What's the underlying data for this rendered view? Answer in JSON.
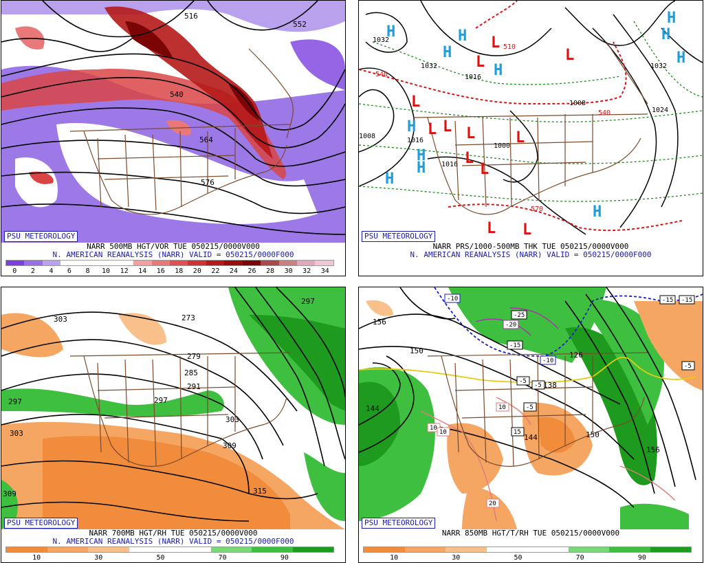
{
  "panels": {
    "vor500": {
      "badge": "PSU METEOROLOGY",
      "line1": "NARR 500MB HGT/VOR TUE 050215/0000V000",
      "line2": "N. AMERICAN REANALYSIS (NARR) VALID = 050215/0000F000",
      "scale_colors": [
        "#7b3fe0",
        "#9a6ee6",
        "#b9a3ee",
        "#ffffff",
        "#ffffff",
        "#ffffff",
        "#ffffff",
        "#f2a0a0",
        "#e97878",
        "#e05050",
        "#cf3232",
        "#b51a1a",
        "#9a0d0d",
        "#7b0505",
        "#a84a4a",
        "#c88080",
        "#e0a8b8",
        "#f4c6d4"
      ],
      "scale_labels": [
        "0",
        "2",
        "4",
        "6",
        "8",
        "10",
        "12",
        "14",
        "16",
        "18",
        "20",
        "22",
        "24",
        "26",
        "28",
        "30",
        "32",
        "34"
      ],
      "contour_labels": [
        "516",
        "552",
        "540",
        "564",
        "576"
      ]
    },
    "mslp": {
      "badge": "PSU METEOROLOGY",
      "line1": "NARR PRS/1000-500MB THK TUE 050215/0000V000",
      "line2": "N. AMERICAN REANALYSIS (NARR) VALID = 050215/0000F000",
      "highs": [
        "H",
        "H",
        "H",
        "H",
        "H",
        "H",
        "H",
        "H",
        "H",
        "H",
        "H",
        "H"
      ],
      "lows": [
        "L",
        "L",
        "L",
        "L",
        "L",
        "L",
        "L",
        "L",
        "L",
        "L",
        "L",
        "L"
      ],
      "pressure_labels": [
        "1032",
        "1032",
        "1032",
        "1016",
        "1008",
        "1016",
        "1024",
        "1008",
        "1000",
        "1016"
      ],
      "thickness_labels": [
        "540",
        "510",
        "540",
        "570"
      ]
    },
    "rh700": {
      "badge": "PSU METEOROLOGY",
      "line1": "NARR 700MB HGT/RH TUE 050215/0000V000",
      "line2": "N. AMERICAN REANALYSIS (NARR) VALID = 050215/0000F000",
      "scale_colors": [
        "#f08c3c",
        "#f5a662",
        "#f9c08c",
        "#ffffff",
        "#ffffff",
        "#7ad87a",
        "#3fbf3f",
        "#1e9a1e"
      ],
      "scale_labels": [
        "10",
        "30",
        "50",
        "70",
        "90"
      ],
      "contour_labels": [
        "303",
        "297",
        "279",
        "285",
        "291",
        "297",
        "303",
        "309",
        "309",
        "315",
        "303",
        "297",
        "273"
      ]
    },
    "t850": {
      "badge": "PSU METEOROLOGY",
      "line1": "NARR 850MB HGT/T/RH TUE 050215/0000V000",
      "line2": "",
      "scale_colors": [
        "#f08c3c",
        "#f5a662",
        "#f9c08c",
        "#ffffff",
        "#ffffff",
        "#7ad87a",
        "#3fbf3f",
        "#1e9a1e"
      ],
      "scale_labels": [
        "10",
        "30",
        "50",
        "70",
        "90"
      ],
      "contour_labels": [
        "156",
        "150",
        "144",
        "138",
        "126",
        "144",
        "150",
        "156"
      ],
      "temp_labels": [
        "-10",
        "-25",
        "-20",
        "-15",
        "-10",
        "-5",
        "-15",
        "-5",
        "10",
        "-5",
        "15",
        "10",
        "10",
        "20",
        "-5",
        "-15"
      ]
    }
  }
}
